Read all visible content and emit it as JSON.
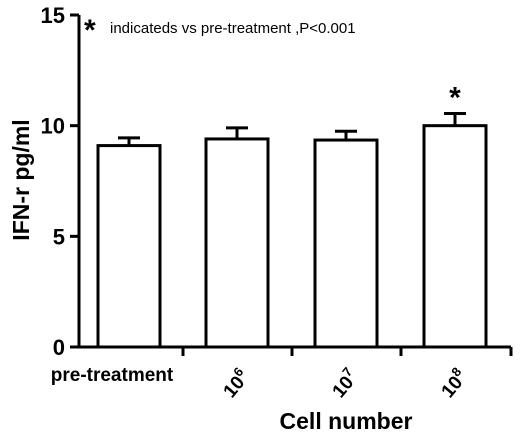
{
  "chart_data": {
    "type": "bar",
    "categories": [
      "pre-treatment",
      "10^6",
      "10^7",
      "10^8"
    ],
    "category_labels": [
      {
        "base": "pre-treatment",
        "sup": ""
      },
      {
        "base": "10",
        "sup": "6"
      },
      {
        "base": "10",
        "sup": "7"
      },
      {
        "base": "10",
        "sup": "8"
      }
    ],
    "values": [
      9.1,
      9.4,
      9.35,
      10.0
    ],
    "errors": [
      0.35,
      0.5,
      0.4,
      0.55
    ],
    "significant": [
      false,
      false,
      false,
      true
    ],
    "significance_marker": "*",
    "annotation": "indicateds vs pre-treatment ,P<0.001",
    "xlabel": "Cell number",
    "ylabel": "IFN-r  pg/ml",
    "ylim": [
      0,
      15
    ],
    "yticks": [
      "0",
      "5",
      "10",
      "15"
    ],
    "grid": false,
    "bar_fill": "#ffffff",
    "bar_stroke": "#000000"
  }
}
